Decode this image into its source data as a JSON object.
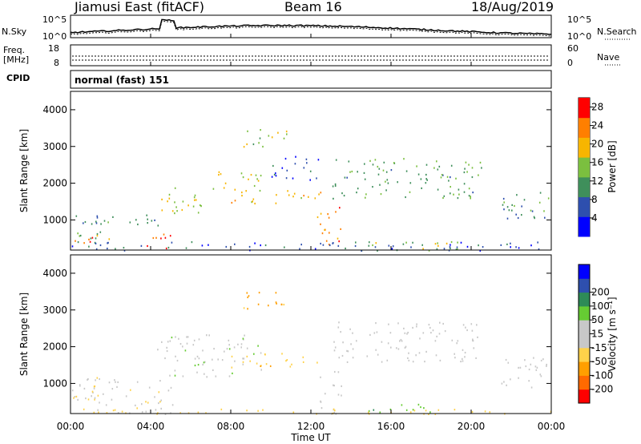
{
  "header": {
    "station": "Jiamusi East (fitACF)",
    "beam": "Beam 16",
    "date": "18/Aug/2019"
  },
  "panels": {
    "nsky": {
      "label": "N.Sky",
      "left_top": "10^5",
      "left_bottom": "10^0",
      "right_top": "10^5",
      "right_bottom": "10^0",
      "right_label": "N.Search"
    },
    "freq": {
      "label_line1": "Freq.",
      "label_line2": "[MHz]",
      "left_top": "18",
      "left_bottom": "8",
      "right_top": "60",
      "right_bottom": "0",
      "right_label": "Nave"
    },
    "cpid": {
      "label": "CPID",
      "value": "normal (fast) 151"
    }
  },
  "colors": {
    "power_scale": [
      "#0000ff",
      "#2e4fae",
      "#3f8f5b",
      "#7bbf3f",
      "#f7b500",
      "#ff7f00",
      "#ff0000"
    ],
    "velocity_scale": [
      "#ff0000",
      "#ff6a00",
      "#ff9f00",
      "#ffd24a",
      "#c8c8c8",
      "#c8c8c8",
      "#66cc33",
      "#2e8b57",
      "#2e4fae",
      "#0000ff"
    ]
  },
  "chart_data": [
    {
      "type": "heatmap",
      "panel": "power",
      "ylabel": "Slant Range [km]",
      "yticks": [
        "1000",
        "2000",
        "3000",
        "4000"
      ],
      "ylim": [
        180,
        4500
      ],
      "xlim": [
        0,
        24
      ],
      "colorbar_label": "Power [dB]",
      "colorbar_ticks": [
        "4",
        "8",
        "12",
        "16",
        "20",
        "24",
        "28"
      ],
      "clim": [
        0,
        30
      ],
      "features": [
        {
          "t0": 0.0,
          "t1": 1.5,
          "r0": 200,
          "r1": 1250,
          "value": 10
        },
        {
          "t0": 0.2,
          "t1": 2.0,
          "r0": 350,
          "r1": 700,
          "value": 24
        },
        {
          "t0": 1.0,
          "t1": 4.5,
          "r0": 800,
          "r1": 1150,
          "value": 11
        },
        {
          "t0": 3.8,
          "t1": 5.2,
          "r0": 180,
          "r1": 700,
          "value": 26
        },
        {
          "t0": 4.2,
          "t1": 7.0,
          "r0": 1200,
          "r1": 1900,
          "value": 16
        },
        {
          "t0": 6.5,
          "t1": 9.5,
          "r0": 1800,
          "r1": 2350,
          "value": 17
        },
        {
          "t0": 8.0,
          "t1": 12.5,
          "r0": 1450,
          "r1": 1850,
          "value": 20
        },
        {
          "t0": 8.5,
          "t1": 10.8,
          "r0": 3000,
          "r1": 3550,
          "value": 15
        },
        {
          "t0": 10.0,
          "t1": 12.5,
          "r0": 2100,
          "r1": 2800,
          "value": 6
        },
        {
          "t0": 12.3,
          "t1": 13.5,
          "r0": 180,
          "r1": 1400,
          "value": 23
        },
        {
          "t0": 13.0,
          "t1": 20.5,
          "r0": 1600,
          "r1": 2700,
          "value": 12
        },
        {
          "t0": 14.5,
          "t1": 21.0,
          "r0": 180,
          "r1": 450,
          "value": 16
        },
        {
          "t0": 21.5,
          "t1": 24.0,
          "r0": 900,
          "r1": 1800,
          "value": 10
        },
        {
          "t0": 0.0,
          "t1": 24.0,
          "r0": 180,
          "r1": 420,
          "value": 7
        }
      ]
    },
    {
      "type": "heatmap",
      "panel": "velocity",
      "ylabel": "Slant Range [km]",
      "yticks": [
        "1000",
        "2000",
        "3000",
        "4000"
      ],
      "ylim": [
        180,
        4500
      ],
      "xlim": [
        0,
        24
      ],
      "xlabel": "Time UT",
      "xticks": [
        "00:00",
        "04:00",
        "08:00",
        "12:00",
        "16:00",
        "20:00",
        "00:00"
      ],
      "colorbar_label": "Velocity [m s⁻¹]",
      "colorbar_ticks": [
        "-200",
        "-100",
        "-50",
        "-15",
        "15",
        "50",
        "100",
        "200"
      ],
      "features": [
        {
          "t0": 0.0,
          "t1": 1.5,
          "r0": 200,
          "r1": 1250,
          "value": -10
        },
        {
          "t0": 1.0,
          "t1": 5.2,
          "r0": 180,
          "r1": 1150,
          "value": -5
        },
        {
          "t0": 4.2,
          "t1": 9.5,
          "r0": 1200,
          "r1": 2350,
          "value": 5
        },
        {
          "t0": 8.0,
          "t1": 12.5,
          "r0": 1450,
          "r1": 1850,
          "value": -40
        },
        {
          "t0": 8.5,
          "t1": 10.8,
          "r0": 3000,
          "r1": 3550,
          "value": -60
        },
        {
          "t0": 12.3,
          "t1": 13.5,
          "r0": 180,
          "r1": 1400,
          "value": 0
        },
        {
          "t0": 13.0,
          "t1": 20.5,
          "r0": 1600,
          "r1": 2700,
          "value": 0
        },
        {
          "t0": 14.5,
          "t1": 18.0,
          "r0": 180,
          "r1": 450,
          "value": 40
        },
        {
          "t0": 21.5,
          "t1": 24.0,
          "r0": 900,
          "r1": 1800,
          "value": 0
        },
        {
          "t0": 0.0,
          "t1": 24.0,
          "r0": 180,
          "r1": 320,
          "value": -30
        }
      ]
    }
  ]
}
